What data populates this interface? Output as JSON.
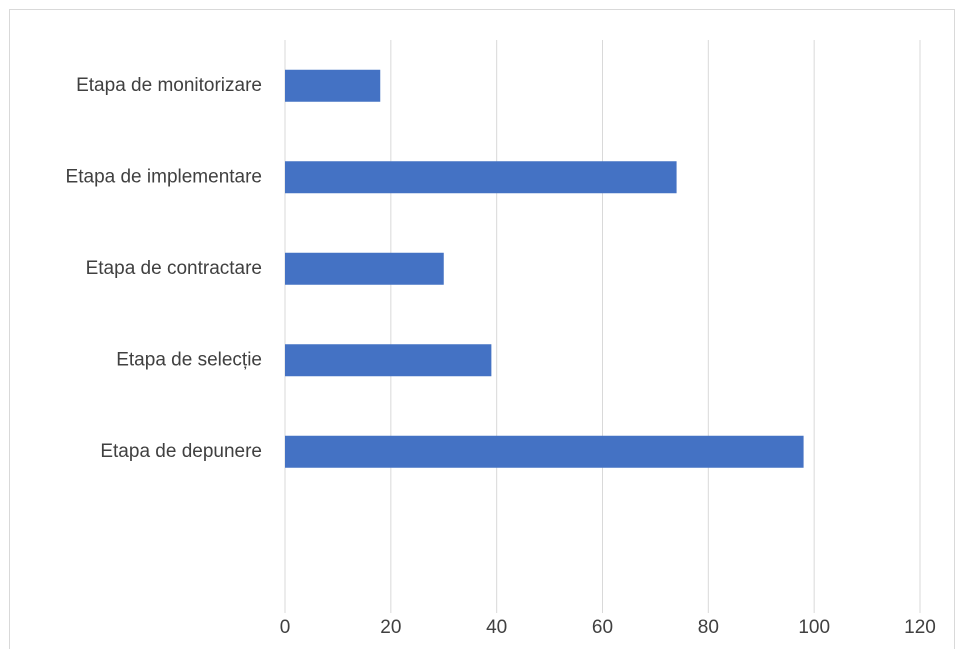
{
  "chart_data": {
    "type": "bar",
    "orientation": "horizontal",
    "categories": [
      "Etapa de monitorizare",
      "Etapa de implementare",
      "Etapa de contractare",
      "Etapa de selecție",
      "Etapa de depunere"
    ],
    "values": [
      18,
      74,
      30,
      39,
      98
    ],
    "xlim": [
      0,
      120
    ],
    "xticks": [
      "0",
      "20",
      "40",
      "60",
      "80",
      "100",
      "120"
    ],
    "grid": "vertical",
    "bar_color": "#4472C4",
    "grid_color": "#d9d9d9",
    "title": "",
    "xlabel": "",
    "ylabel": ""
  }
}
